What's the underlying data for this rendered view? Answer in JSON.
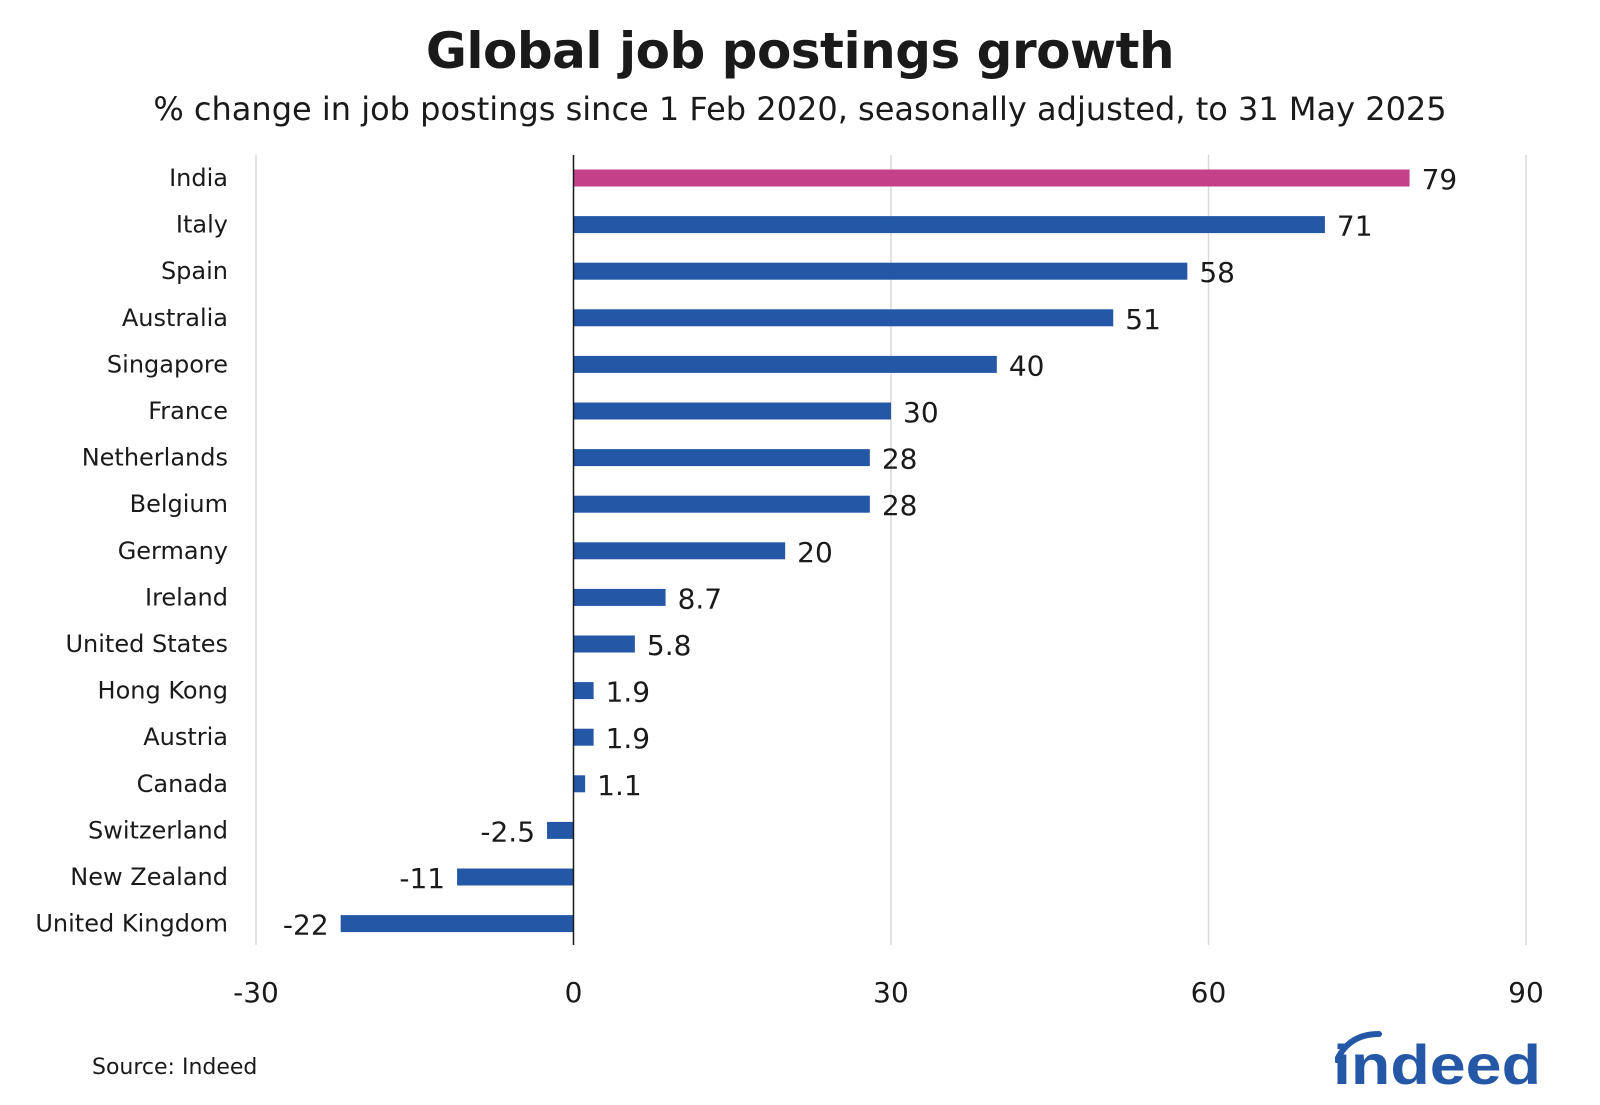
{
  "title": "Global job postings growth",
  "subtitle": "% change in job postings since 1 Feb 2020, seasonally adjusted, to 31 May 2025",
  "source": "Source: Indeed",
  "logo_text": "indeed",
  "colors": {
    "highlight": "#C4418A",
    "bar": "#2557A7",
    "grid": "#D9D9D9",
    "axis": "#1a1a1a",
    "brand": "#2557A7"
  },
  "chart_data": {
    "type": "bar",
    "orientation": "horizontal",
    "title": "Global job postings growth",
    "subtitle": "% change in job postings since 1 Feb 2020, seasonally adjusted, to 31 May 2025",
    "categories": [
      "India",
      "Italy",
      "Spain",
      "Australia",
      "Singapore",
      "France",
      "Netherlands",
      "Belgium",
      "Germany",
      "Ireland",
      "United States",
      "Hong Kong",
      "Austria",
      "Canada",
      "Switzerland",
      "New Zealand",
      "United Kingdom"
    ],
    "values": [
      79,
      71,
      58,
      51,
      40,
      30,
      28,
      28,
      20,
      8.7,
      5.8,
      1.9,
      1.9,
      1.1,
      -2.5,
      -11,
      -22
    ],
    "labels": [
      "79",
      "71",
      "58",
      "51",
      "40",
      "30",
      "28",
      "28",
      "20",
      "8.7",
      "5.8",
      "1.9",
      "1.9",
      "1.1",
      "-2.5",
      "-11",
      "-22"
    ],
    "highlight": [
      "India"
    ],
    "xlim": [
      -30,
      90
    ],
    "xticks": [
      "-30",
      "0",
      "30",
      "60",
      "90"
    ],
    "grid": true,
    "xlabel": "",
    "ylabel": ""
  }
}
